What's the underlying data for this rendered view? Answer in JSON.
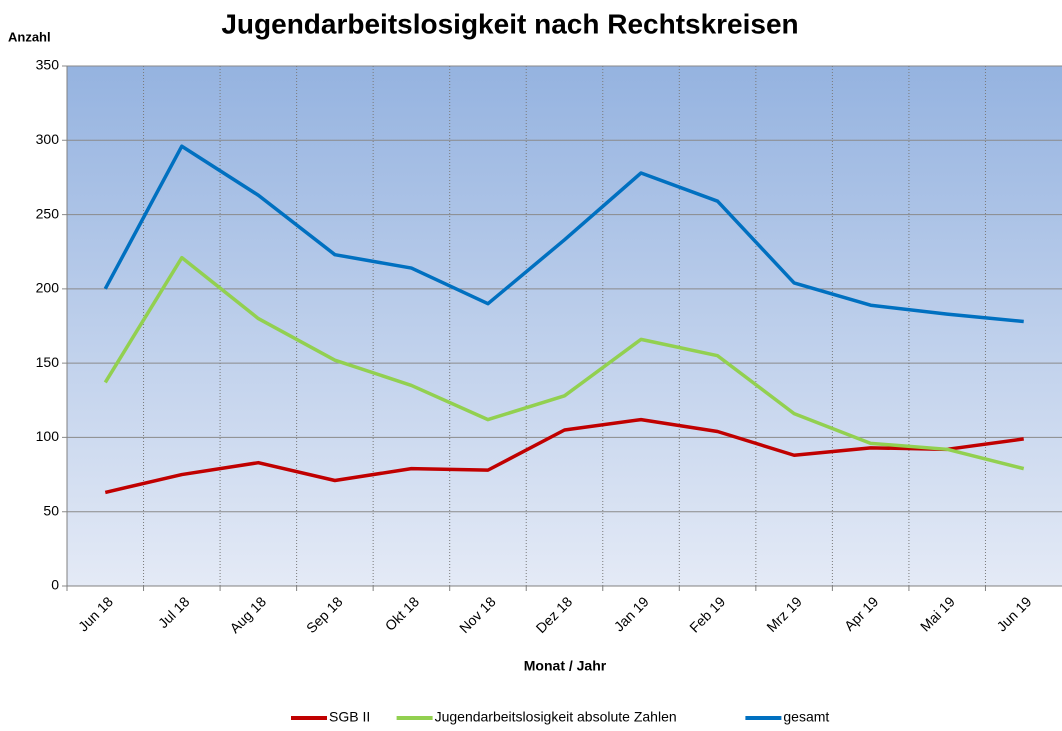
{
  "chart_data": {
    "type": "line",
    "title": "Jugendarbeitslosigkeit nach Rechtskreisen",
    "y_label": "Anzahl",
    "x_label": "Monat / Jahr",
    "categories": [
      "Jun 18",
      "Jul 18",
      "Aug 18",
      "Sep 18",
      "Okt 18",
      "Nov 18",
      "Dez 18",
      "Jan 19",
      "Feb 19",
      "Mrz 19",
      "Apr 19",
      "Mai 19",
      "Jun 19"
    ],
    "series": [
      {
        "name": "SGB II",
        "color": "#c00000",
        "values": [
          63,
          75,
          83,
          71,
          79,
          78,
          105,
          112,
          104,
          88,
          93,
          92,
          99
        ]
      },
      {
        "name": "Jugendarbeitslosigkeit absolute Zahlen",
        "color": "#92d050",
        "values": [
          137,
          221,
          180,
          152,
          135,
          112,
          128,
          166,
          155,
          116,
          96,
          92,
          79
        ]
      },
      {
        "name": "gesamt",
        "color": "#0070c0",
        "values": [
          200,
          296,
          263,
          223,
          214,
          190,
          233,
          278,
          259,
          204,
          189,
          183,
          178
        ]
      }
    ],
    "ylim": [
      0,
      350
    ],
    "yticks": [
      0,
      50,
      100,
      150,
      200,
      250,
      300,
      350
    ],
    "grid": true,
    "legend": "bottom"
  }
}
